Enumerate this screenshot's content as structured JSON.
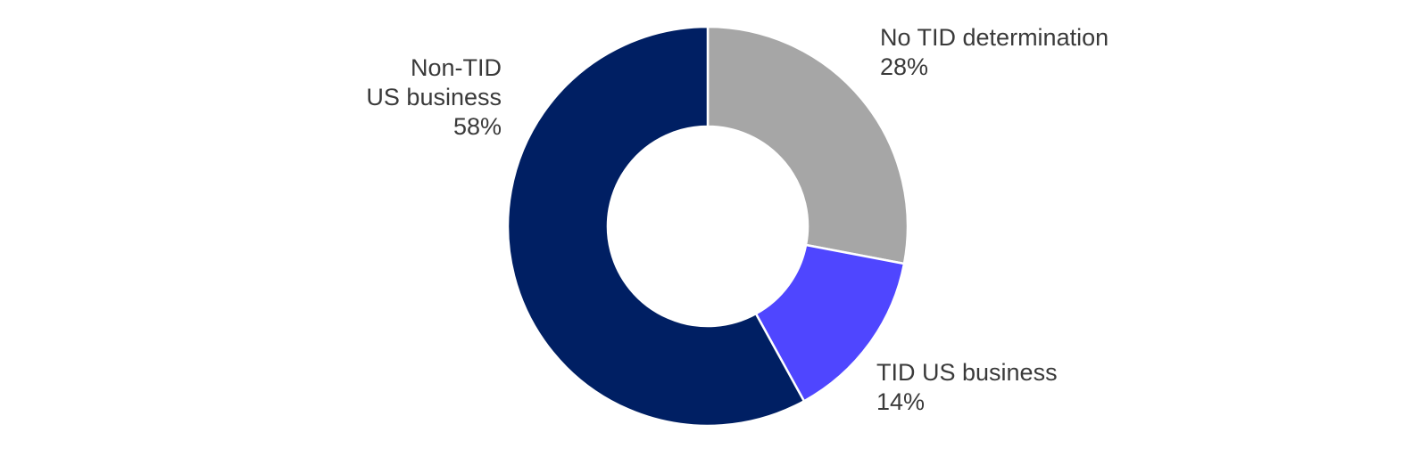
{
  "chart_data": {
    "type": "pie",
    "donut": true,
    "title": "",
    "slices": [
      {
        "label_lines": [
          "No TID determination"
        ],
        "value": 28,
        "value_label": "28%",
        "color": "#a6a6a6"
      },
      {
        "label_lines": [
          "TID US business"
        ],
        "value": 14,
        "value_label": "14%",
        "color": "#4f46ff"
      },
      {
        "label_lines": [
          "Non-TID",
          "US business"
        ],
        "value": 58,
        "value_label": "58%",
        "color": "#001f63"
      }
    ],
    "legend": "none",
    "slice_border_color": "#ffffff"
  }
}
